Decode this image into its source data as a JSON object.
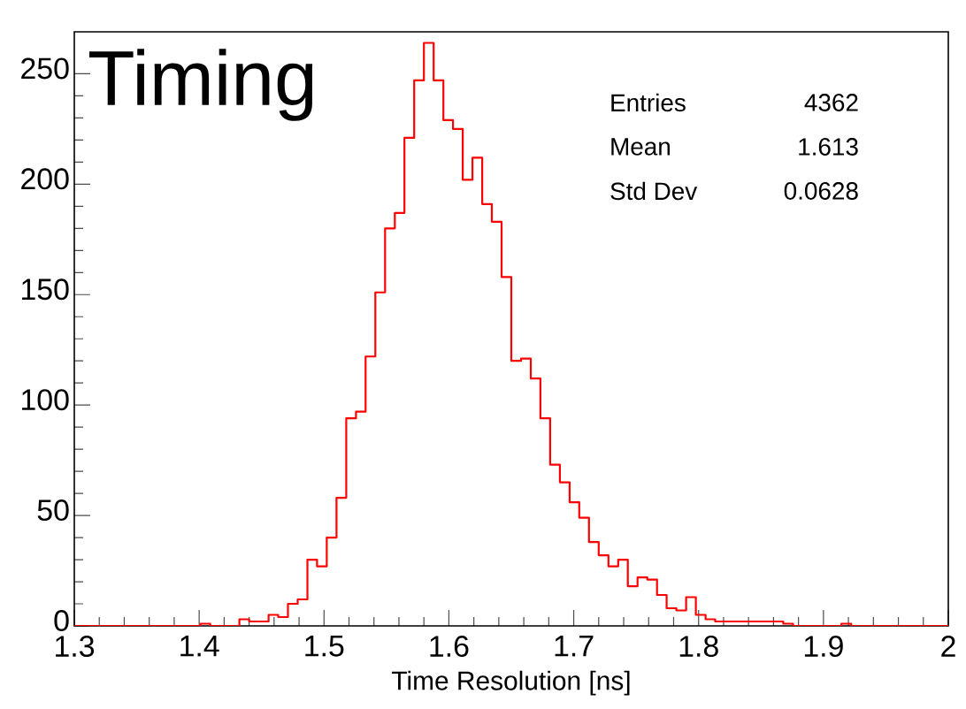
{
  "chart_data": {
    "type": "histogram",
    "title": "Timing",
    "xlabel": "Time Resolution [ns]",
    "annotations": [
      "Entries",
      "4362",
      "Mean",
      "1.613",
      "Std Dev",
      "0.0628"
    ],
    "color": "#ff0000",
    "bins": [
      1.3,
      1.3078,
      1.3156,
      1.3233,
      1.3311,
      1.3389,
      1.3467,
      1.3544,
      1.3622,
      1.37,
      1.3778,
      1.3856,
      1.3933,
      1.4011,
      1.4089,
      1.4167,
      1.4244,
      1.4322,
      1.44,
      1.4478,
      1.4556,
      1.4633,
      1.4711,
      1.4789,
      1.4867,
      1.4944,
      1.5022,
      1.51,
      1.5178,
      1.5256,
      1.5333,
      1.5411,
      1.5489,
      1.5567,
      1.5644,
      1.5722,
      1.58,
      1.5878,
      1.5956,
      1.6033,
      1.6111,
      1.6189,
      1.6267,
      1.6344,
      1.6422,
      1.65,
      1.6578,
      1.6656,
      1.6733,
      1.6811,
      1.6889,
      1.6967,
      1.7044,
      1.7122,
      1.72,
      1.7278,
      1.7356,
      1.7433,
      1.7511,
      1.7589,
      1.7667,
      1.7744,
      1.7822,
      1.79,
      1.7978,
      1.8056,
      1.8133,
      1.8211,
      1.8289,
      1.8367,
      1.8444,
      1.8522,
      1.86,
      1.8678,
      1.8756,
      1.8833,
      1.8911,
      1.8989,
      1.9067,
      1.9144,
      1.9222,
      1.93,
      1.9378,
      1.9456,
      1.9533,
      1.9611,
      1.9689,
      1.9767,
      1.9844,
      1.9922,
      2.0
    ],
    "values": [
      0,
      0,
      0,
      0,
      0,
      0,
      0,
      0,
      0,
      0,
      0,
      0,
      0,
      1,
      0,
      0,
      0,
      3,
      2,
      2,
      5,
      4,
      10,
      12,
      30,
      27,
      40,
      58,
      94,
      97,
      122,
      151,
      180,
      187,
      221,
      247,
      264,
      247,
      229,
      225,
      202,
      212,
      191,
      183,
      158,
      120,
      121,
      112,
      94,
      73,
      65,
      56,
      49,
      38,
      32,
      27,
      30,
      18,
      22,
      21,
      14,
      8,
      7,
      13,
      5,
      3,
      2,
      2,
      2,
      2,
      2,
      2,
      2,
      1,
      0,
      0,
      0,
      0,
      0,
      1,
      0,
      0,
      0,
      0,
      0,
      0,
      0,
      0,
      0,
      0
    ],
    "xlim": [
      1.3,
      2.0
    ],
    "ylim": [
      0,
      269
    ],
    "xticks": [
      1.3,
      1.4,
      1.5,
      1.6,
      1.7,
      1.8,
      1.9,
      2
    ],
    "yticks": [
      0,
      50,
      100,
      150,
      200,
      250
    ]
  }
}
